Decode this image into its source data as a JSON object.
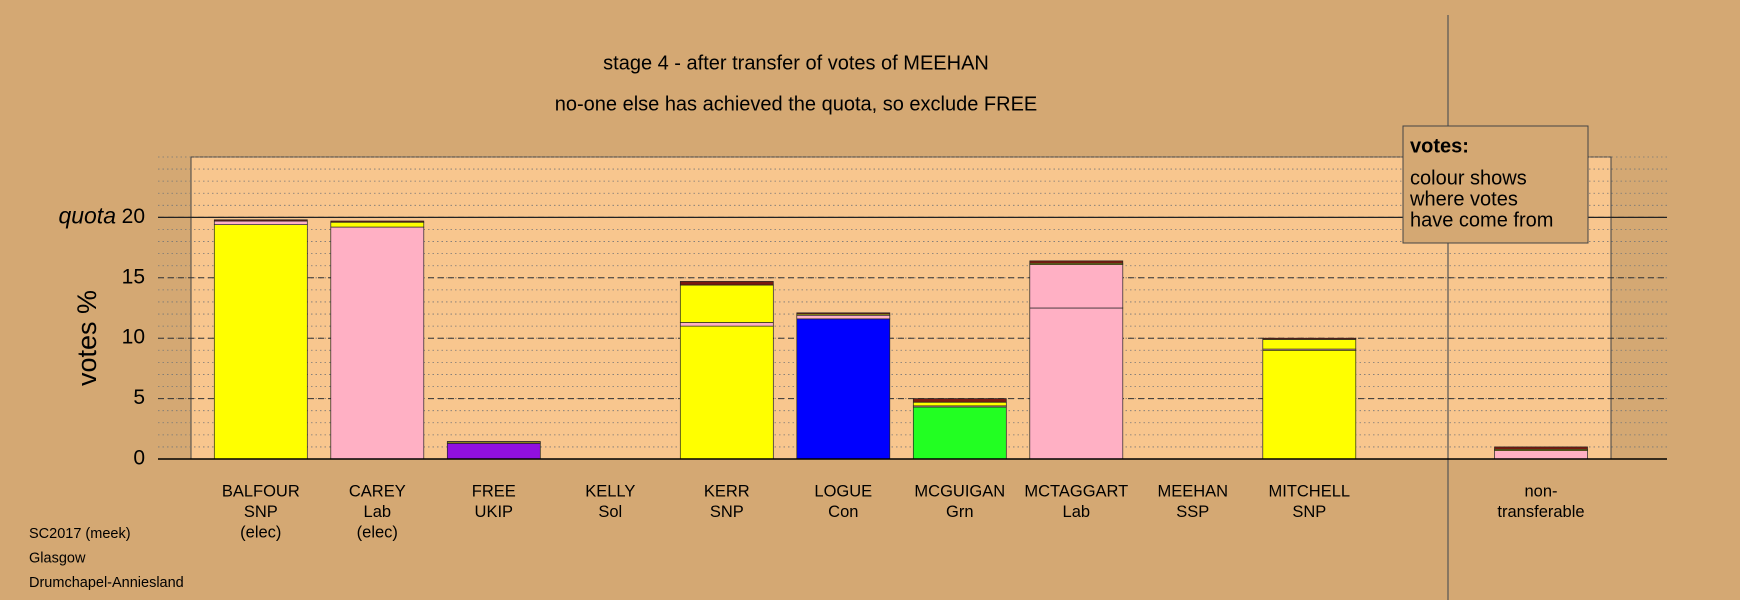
{
  "chart_data": {
    "type": "stacked_bar",
    "title": "stage 4 - after transfer of votes of MEEHAN",
    "subtitle": "no-one else has achieved the quota, so exclude FREE",
    "y_label": "votes %",
    "quota": 20,
    "quota_label": "quota",
    "categories": [
      [
        "BALFOUR",
        "SNP",
        "(elec)"
      ],
      [
        "CAREY",
        "Lab",
        "(elec)"
      ],
      [
        "FREE",
        "UKIP"
      ],
      [
        "KELLY",
        "Sol"
      ],
      [
        "KERR",
        "SNP"
      ],
      [
        "LOGUE",
        "Con"
      ],
      [
        "MCGUIGAN",
        "Grn"
      ],
      [
        "MCTAGGART",
        "Lab"
      ],
      [
        "MEEHAN",
        "SSP"
      ],
      [
        "MITCHELL",
        "SNP"
      ],
      [
        "non-",
        "transferable"
      ]
    ],
    "series": [
      {
        "color": "#ffff00",
        "values": [
          19.4,
          0,
          0,
          0,
          11.0,
          0,
          0,
          0,
          0,
          9.0,
          0
        ]
      },
      {
        "color": "#ffb0c4",
        "values": [
          0,
          19.2,
          0,
          0,
          0,
          0,
          0,
          12.5,
          0,
          0,
          0
        ]
      },
      {
        "color": "#9010e0",
        "values": [
          0,
          0,
          1.3,
          0,
          0,
          0,
          0,
          0,
          0,
          0,
          0
        ]
      },
      {
        "color": "#0000ff",
        "values": [
          0,
          0,
          0,
          0,
          0,
          11.6,
          0,
          0,
          0,
          0,
          0
        ]
      },
      {
        "color": "#22ff22",
        "values": [
          0,
          0,
          0,
          0,
          0,
          0,
          4.3,
          0,
          0,
          0,
          0
        ]
      },
      {
        "color": "#ffb0c4",
        "values": [
          0.3,
          0,
          0,
          0,
          0.3,
          0.3,
          0.1,
          3.6,
          0,
          0.1,
          0.7
        ]
      },
      {
        "color": "#ffff00",
        "values": [
          0,
          0.4,
          0.1,
          0,
          3.1,
          0.1,
          0.3,
          0.1,
          0,
          0.8,
          0.1
        ]
      },
      {
        "color": "#7a1a10",
        "values": [
          0.1,
          0.1,
          0.05,
          0,
          0.3,
          0.1,
          0.3,
          0.2,
          0,
          0.1,
          0.2
        ]
      }
    ],
    "ylim": [
      0,
      25
    ],
    "yticks": [
      0,
      5,
      10,
      15,
      20
    ],
    "grid": true,
    "legend": {
      "title": "votes:",
      "lines": [
        "colour shows",
        "where votes",
        "have come from"
      ]
    },
    "footer": [
      "SC2017 (meek)",
      "Glasgow",
      "Drumchapel-Anniesland"
    ]
  }
}
